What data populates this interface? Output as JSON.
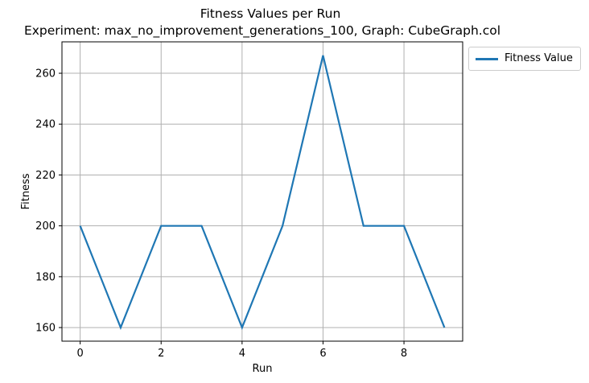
{
  "title_line1": "Fitness Values per Run",
  "title_line2": "Experiment: max_no_improvement_generations_100, Graph: CubeGraph.col",
  "colors": {
    "series": "#1f77b4",
    "grid": "#b0b0b0",
    "axis": "#000000"
  },
  "chart_data": {
    "type": "line",
    "title": "Fitness Values per Run\nExperiment: max_no_improvement_generations_100, Graph: CubeGraph.col",
    "xlabel": "Run",
    "ylabel": "Fitness",
    "x": [
      0,
      1,
      2,
      3,
      4,
      5,
      6,
      7,
      8,
      9
    ],
    "series": [
      {
        "name": "Fitness Value",
        "values": [
          200,
          160,
          200,
          200,
          160,
          200,
          267,
          200,
          200,
          160
        ]
      }
    ],
    "xlim": [
      -0.45,
      9.45
    ],
    "ylim": [
      154.65,
      272.35
    ],
    "xticks": [
      0,
      2,
      4,
      6,
      8
    ],
    "yticks": [
      160,
      180,
      200,
      220,
      240,
      260
    ],
    "grid": true,
    "legend_position": "outside top-right"
  }
}
